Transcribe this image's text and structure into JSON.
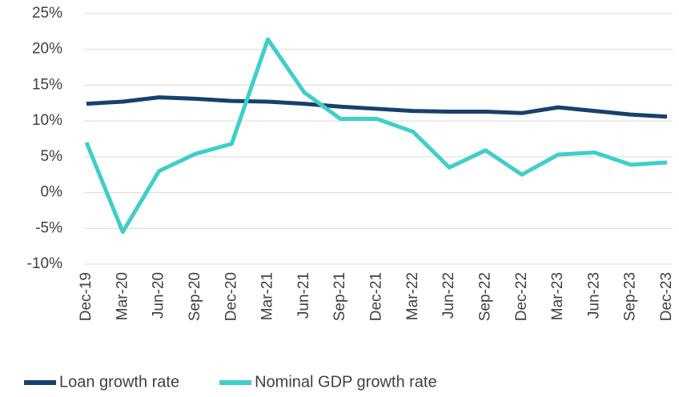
{
  "chart_data": {
    "type": "line",
    "categories": [
      "Dec-19",
      "Mar-20",
      "Jun-20",
      "Sep-20",
      "Dec-20",
      "Mar-21",
      "Jun-21",
      "Sep-21",
      "Dec-21",
      "Mar-22",
      "Jun-22",
      "Sep-22",
      "Dec-22",
      "Mar-23",
      "Jun-23",
      "Sep-23",
      "Dec-23"
    ],
    "series": [
      {
        "name": "Loan growth rate",
        "color": "#17406d",
        "values": [
          12.4,
          12.7,
          13.3,
          13.1,
          12.8,
          12.7,
          12.4,
          12.0,
          11.7,
          11.4,
          11.3,
          11.3,
          11.1,
          11.9,
          11.4,
          10.9,
          10.6
        ]
      },
      {
        "name": "Nominal GDP growth rate",
        "color": "#3ecfc8",
        "values": [
          7.0,
          -5.5,
          3.0,
          5.4,
          6.8,
          21.4,
          14.0,
          10.3,
          10.3,
          8.5,
          3.5,
          5.9,
          2.5,
          5.3,
          5.6,
          3.9,
          4.2
        ]
      }
    ],
    "ylim": [
      -10,
      25
    ],
    "yticks": [
      {
        "value": -10,
        "label": "-10%"
      },
      {
        "value": -5,
        "label": "-5%"
      },
      {
        "value": 0,
        "label": "0%"
      },
      {
        "value": 5,
        "label": "5%"
      },
      {
        "value": 10,
        "label": "10%"
      },
      {
        "value": 15,
        "label": "15%"
      },
      {
        "value": 20,
        "label": "20%"
      },
      {
        "value": 25,
        "label": "25%"
      }
    ],
    "grid": true,
    "legend": "bottom"
  }
}
